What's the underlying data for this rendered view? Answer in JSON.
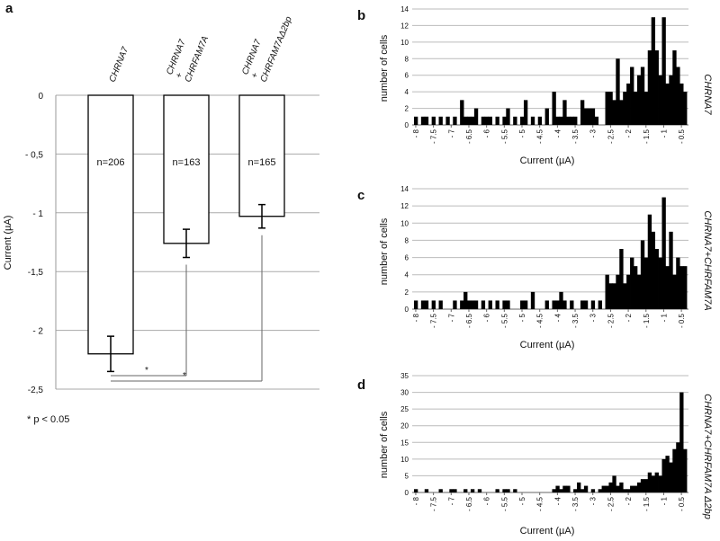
{
  "chart_data": [
    {
      "id": "a",
      "panel_label": "a",
      "type": "bar",
      "ylabel": "Current (µA)",
      "ylim": [
        -2.5,
        0
      ],
      "yticks": [
        0,
        -0.5,
        -1,
        -1.5,
        -2,
        -2.5
      ],
      "ytick_labels": [
        "0",
        "- 0,5",
        "- 1",
        "-1,5",
        "- 2",
        "-2,5"
      ],
      "grid": true,
      "categories": [
        {
          "lines": [
            "CHRNA7"
          ]
        },
        {
          "lines": [
            "CHRNA7",
            "+",
            "CHRFAM7A"
          ]
        },
        {
          "lines": [
            "CHRNA7",
            "+",
            "CHRFAM7AΔ2bp"
          ]
        }
      ],
      "values": [
        -2.2,
        -1.26,
        -1.03
      ],
      "errors": [
        0.15,
        0.12,
        0.1
      ],
      "n_labels": [
        "n=206",
        "n=163",
        "n=165"
      ],
      "significance": [
        {
          "from": 0,
          "to": 1,
          "mark": "*"
        },
        {
          "from": 0,
          "to": 2,
          "mark": "*"
        }
      ],
      "legend_note": "* p < 0.05"
    },
    {
      "id": "b",
      "panel_label": "b",
      "type": "bar",
      "side_label": "CHRNA7",
      "xlabel": "Current (µA)",
      "ylabel": "number of cells",
      "ylim": [
        0,
        14
      ],
      "yticks": [
        0,
        2,
        4,
        6,
        8,
        10,
        12,
        14
      ],
      "xlim": [
        -8.1,
        -0.3
      ],
      "xticks": [
        -8,
        -7.5,
        -7,
        -6.5,
        -6,
        -5.5,
        -5,
        -4.5,
        -4,
        -3.5,
        -3,
        -2.5,
        -2,
        -1.5,
        -1,
        -0.5
      ],
      "xtick_labels": [
        "- 8",
        "- 7.5",
        "- 7",
        "- 6.5",
        "- 6",
        "- 5.5",
        "- 5",
        "- 4.5",
        "- 4",
        "- 3.5",
        "- 3",
        "- 2.5",
        "- 2",
        "- 1.5",
        "- 1",
        "- 0.5"
      ],
      "bin_width": 0.1,
      "x": [
        -8.0,
        -7.8,
        -7.7,
        -7.5,
        -7.3,
        -7.1,
        -6.9,
        -6.7,
        -6.6,
        -6.5,
        -6.4,
        -6.3,
        -6.1,
        -6.0,
        -5.9,
        -5.7,
        -5.5,
        -5.4,
        -5.2,
        -5.0,
        -4.9,
        -4.7,
        -4.5,
        -4.3,
        -4.1,
        -4.0,
        -3.9,
        -3.8,
        -3.7,
        -3.6,
        -3.5,
        -3.3,
        -3.2,
        -3.1,
        -3.0,
        -2.9,
        -2.6,
        -2.5,
        -2.4,
        -2.3,
        -2.2,
        -2.1,
        -2.0,
        -1.9,
        -1.8,
        -1.7,
        -1.6,
        -1.5,
        -1.4,
        -1.3,
        -1.2,
        -1.1,
        -1.0,
        -0.9,
        -0.8,
        -0.7,
        -0.6,
        -0.5,
        -0.4
      ],
      "values": [
        1,
        1,
        1,
        1,
        1,
        1,
        1,
        3,
        1,
        1,
        1,
        2,
        1,
        1,
        1,
        1,
        1,
        2,
        1,
        1,
        3,
        1,
        1,
        2,
        4,
        1,
        1,
        3,
        1,
        1,
        1,
        3,
        2,
        2,
        2,
        1,
        4,
        4,
        3,
        8,
        3,
        4,
        5,
        7,
        4,
        6,
        7,
        4,
        9,
        13,
        9,
        6,
        13,
        5,
        6,
        9,
        7,
        5,
        4
      ]
    },
    {
      "id": "c",
      "panel_label": "c",
      "type": "bar",
      "side_label": "CHRNA7+CHRFAM7A",
      "xlabel": "Current (µA)",
      "ylabel": "number of cells",
      "ylim": [
        0,
        14
      ],
      "yticks": [
        0,
        2,
        4,
        6,
        8,
        10,
        12,
        14
      ],
      "xlim": [
        -8.1,
        -0.3
      ],
      "xticks": [
        -8,
        -7.5,
        -7,
        -6.5,
        -6,
        -5.5,
        -5,
        -4.5,
        -4,
        -3.5,
        -3,
        -2.5,
        -2,
        -1.5,
        -1,
        -0.5
      ],
      "xtick_labels": [
        "- 8",
        "- 7.5",
        "- 7",
        "- 6.5",
        "- 6",
        "- 5.5",
        "- 5",
        "- 4.5",
        "- 4",
        "- 3.5",
        "- 3",
        "- 2.5",
        "- 2",
        "- 1.5",
        "- 1",
        "- 0.5"
      ],
      "bin_width": 0.1,
      "x": [
        -8.0,
        -7.8,
        -7.7,
        -7.5,
        -7.3,
        -6.9,
        -6.7,
        -6.6,
        -6.5,
        -6.4,
        -6.3,
        -6.1,
        -5.9,
        -5.7,
        -5.5,
        -5.4,
        -5.0,
        -4.9,
        -4.7,
        -4.3,
        -4.1,
        -4.0,
        -3.9,
        -3.8,
        -3.6,
        -3.3,
        -3.2,
        -3.0,
        -2.8,
        -2.6,
        -2.5,
        -2.4,
        -2.3,
        -2.2,
        -2.1,
        -2.0,
        -1.9,
        -1.8,
        -1.7,
        -1.6,
        -1.5,
        -1.4,
        -1.3,
        -1.2,
        -1.1,
        -1.0,
        -0.9,
        -0.8,
        -0.7,
        -0.6,
        -0.5,
        -0.4
      ],
      "values": [
        1,
        1,
        1,
        1,
        1,
        1,
        1,
        2,
        1,
        1,
        1,
        1,
        1,
        1,
        1,
        1,
        1,
        1,
        2,
        1,
        1,
        1,
        2,
        1,
        1,
        1,
        1,
        1,
        1,
        4,
        3,
        3,
        4,
        7,
        3,
        4,
        6,
        5,
        4,
        8,
        6,
        11,
        9,
        7,
        6,
        13,
        5,
        9,
        4,
        6,
        5,
        5
      ]
    },
    {
      "id": "d",
      "panel_label": "d",
      "type": "bar",
      "side_label": "CHRNA7+CHRFAM7A Δ2bp",
      "xlabel": "Current (µA)",
      "ylabel": "number of cells",
      "ylim": [
        0,
        35
      ],
      "yticks": [
        0,
        5,
        10,
        15,
        20,
        25,
        30,
        35
      ],
      "xlim": [
        -8.1,
        -0.3
      ],
      "xticks": [
        -8,
        -7.5,
        -7,
        -6.5,
        -6,
        -5.5,
        -5,
        -4.5,
        -4,
        -3.5,
        -3,
        -2.5,
        -2,
        -1.5,
        -1,
        -0.5
      ],
      "xtick_labels": [
        "- 8",
        "- 7.5",
        "- 7",
        "- 6.5",
        "- 6",
        "- 5.5",
        "- 5",
        "- 4.5",
        "- 4",
        "- 3.5",
        "- 3",
        "- 2.5",
        "- 2",
        "- 1.5",
        "- 1",
        "- 0.5"
      ],
      "bin_width": 0.1,
      "x": [
        -8.0,
        -7.7,
        -7.3,
        -7.0,
        -6.9,
        -6.6,
        -6.4,
        -6.2,
        -5.7,
        -5.5,
        -5.4,
        -5.2,
        -4.1,
        -4.0,
        -3.9,
        -3.8,
        -3.7,
        -3.5,
        -3.4,
        -3.3,
        -3.2,
        -3.0,
        -2.8,
        -2.7,
        -2.6,
        -2.5,
        -2.4,
        -2.3,
        -2.2,
        -2.1,
        -2.0,
        -1.9,
        -1.8,
        -1.7,
        -1.6,
        -1.5,
        -1.4,
        -1.3,
        -1.2,
        -1.1,
        -1.0,
        -0.9,
        -0.8,
        -0.7,
        -0.6,
        -0.5,
        -0.4
      ],
      "values": [
        1,
        1,
        1,
        1,
        1,
        1,
        1,
        1,
        1,
        1,
        1,
        1,
        1,
        2,
        1,
        2,
        2,
        1,
        3,
        1,
        2,
        1,
        1,
        2,
        2,
        3,
        5,
        2,
        3,
        1,
        1,
        2,
        2,
        3,
        4,
        4,
        6,
        5,
        6,
        5,
        10,
        11,
        9,
        13,
        15,
        30,
        13
      ]
    }
  ]
}
